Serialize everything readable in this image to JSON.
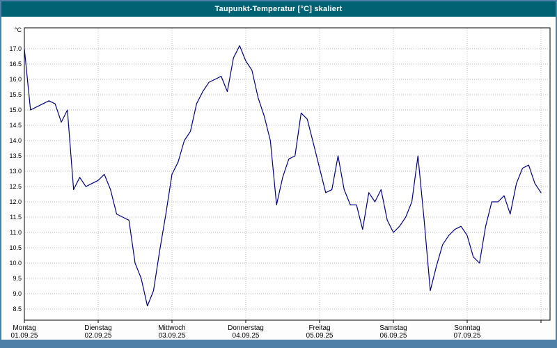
{
  "window": {
    "title": "Taupunkt-Temperatur [°C] skaliert"
  },
  "colors": {
    "title_bar_bg": "#006272",
    "title_text": "#ffffff",
    "frame": "#4e7fa6",
    "line": "#000080",
    "grid": "#b9b9b9",
    "plot_border": "#000000",
    "plot_bg": "#ffffff"
  },
  "chart_data": {
    "type": "line",
    "title": "Taupunkt-Temperatur [°C] skaliert",
    "ylabel": "",
    "y_unit": "°C",
    "ylim": [
      8.5,
      17.0
    ],
    "ytick_step": 0.5,
    "grid": "dotted, horizontal every 0.5 °C and vertical at each day boundary",
    "legend": "none",
    "x_days": [
      {
        "name": "Montag",
        "date": "01.09.25"
      },
      {
        "name": "Dienstag",
        "date": "02.09.25"
      },
      {
        "name": "Mittwoch",
        "date": "03.09.25"
      },
      {
        "name": "Donnerstag",
        "date": "04.09.25"
      },
      {
        "name": "Freitag",
        "date": "05.09.25"
      },
      {
        "name": "Samstag",
        "date": "06.09.25"
      },
      {
        "name": "Sonntag",
        "date": "07.09.25"
      }
    ],
    "sample_interval_hours": 2,
    "series": [
      {
        "name": "Taupunkt-Temperatur",
        "values": [
          17.0,
          15.0,
          15.1,
          15.2,
          15.3,
          15.2,
          14.6,
          15.0,
          12.4,
          12.8,
          12.5,
          12.6,
          12.7,
          12.9,
          12.4,
          11.6,
          11.5,
          11.4,
          10.0,
          9.5,
          8.6,
          9.1,
          10.4,
          11.6,
          12.9,
          13.3,
          14.0,
          14.3,
          15.2,
          15.6,
          15.9,
          16.0,
          16.1,
          15.6,
          16.7,
          17.1,
          16.6,
          16.3,
          15.4,
          14.8,
          14.0,
          11.9,
          12.8,
          13.4,
          13.5,
          14.9,
          14.7,
          13.9,
          13.1,
          12.3,
          12.4,
          13.5,
          12.4,
          11.9,
          11.9,
          11.1,
          12.3,
          12.0,
          12.4,
          11.4,
          11.0,
          11.2,
          11.5,
          12.0,
          13.5,
          11.4,
          9.1,
          9.9,
          10.6,
          10.9,
          11.1,
          11.2,
          10.9,
          10.2,
          10.0,
          11.2,
          12.0,
          12.0,
          12.2,
          11.6,
          12.6,
          13.1,
          13.2,
          12.6,
          12.3
        ]
      }
    ]
  }
}
